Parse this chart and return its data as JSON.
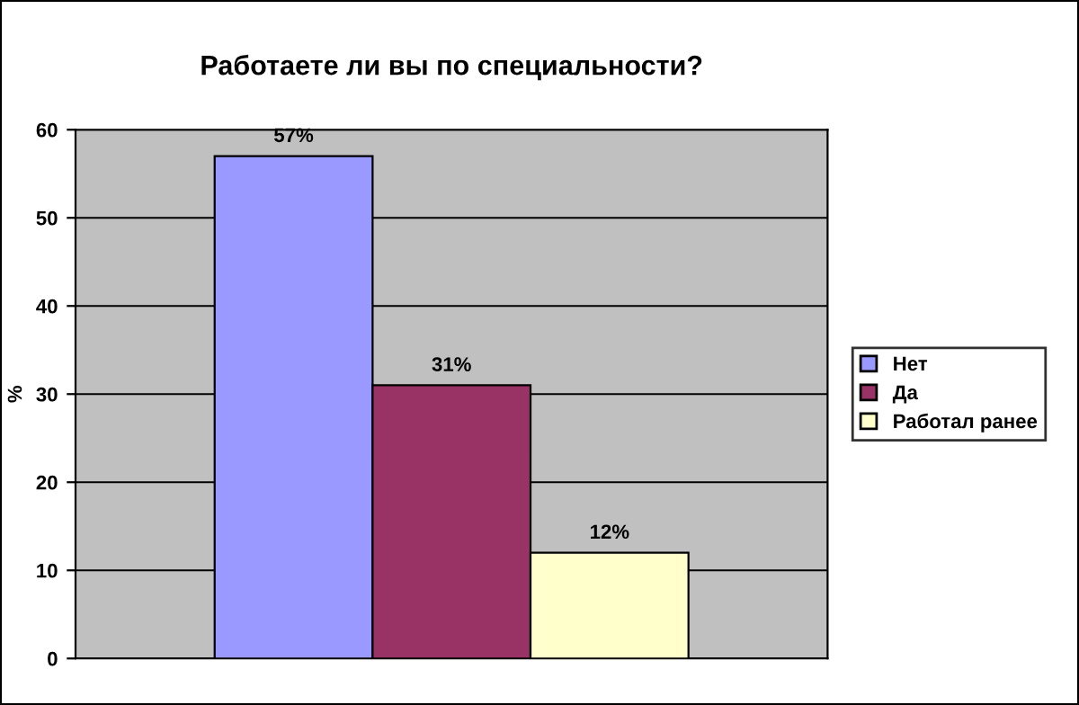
{
  "chart_data": {
    "type": "bar",
    "title": "Работаете ли вы по специальности?",
    "ylabel": "%",
    "categories": [
      null
    ],
    "series": [
      {
        "name": "Нет",
        "color": "#9999ff",
        "values": [
          57
        ],
        "value_labels": [
          "57%"
        ]
      },
      {
        "name": "Да",
        "color": "#993366",
        "values": [
          31
        ],
        "value_labels": [
          "31%"
        ]
      },
      {
        "name": "Работал ранее",
        "color": "#ffffcc",
        "values": [
          12
        ],
        "value_labels": [
          "12%"
        ]
      }
    ],
    "ylim": [
      0,
      60
    ],
    "yticks": [
      0,
      10,
      20,
      30,
      40,
      50,
      60
    ],
    "grid": "y",
    "legend": "right"
  }
}
